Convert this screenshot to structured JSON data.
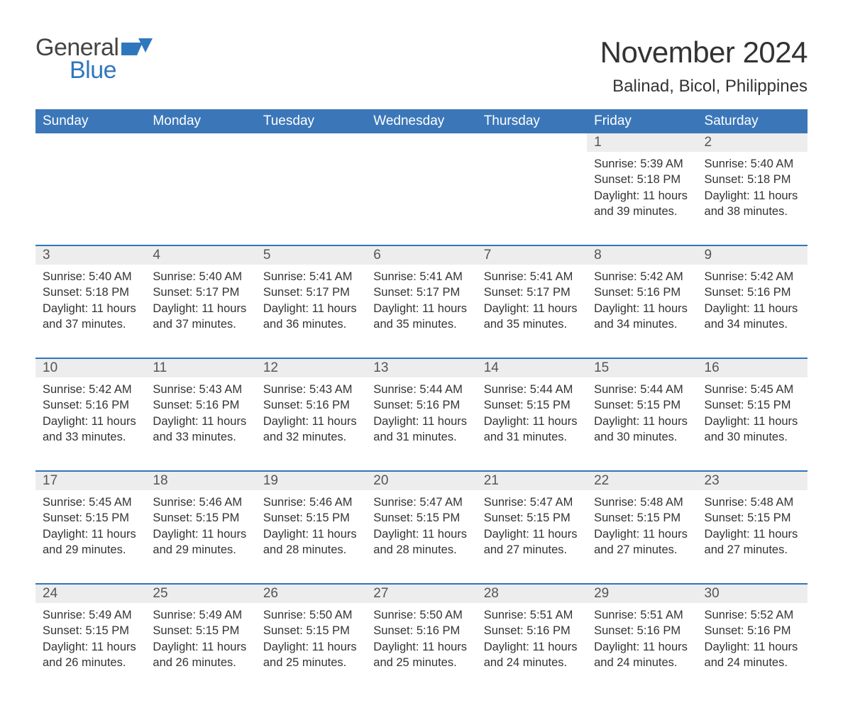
{
  "logo": {
    "word1": "General",
    "word2": "Blue",
    "flag_color": "#2f77bd"
  },
  "title": "November 2024",
  "location": "Balinad, Bicol, Philippines",
  "colors": {
    "header_bg": "#3b77b8",
    "header_text": "#ffffff",
    "row_divider": "#2f77bd",
    "daynum_bg": "#ededed",
    "text": "#333333",
    "logo_gray": "#444444",
    "logo_blue": "#2f77bd"
  },
  "columns": [
    "Sunday",
    "Monday",
    "Tuesday",
    "Wednesday",
    "Thursday",
    "Friday",
    "Saturday"
  ],
  "labels": {
    "sunrise": "Sunrise:",
    "sunset": "Sunset:",
    "daylight": "Daylight:"
  },
  "weeks": [
    [
      null,
      null,
      null,
      null,
      null,
      {
        "d": "1",
        "sunrise": "5:39 AM",
        "sunset": "5:18 PM",
        "daylight": "11 hours and 39 minutes."
      },
      {
        "d": "2",
        "sunrise": "5:40 AM",
        "sunset": "5:18 PM",
        "daylight": "11 hours and 38 minutes."
      }
    ],
    [
      {
        "d": "3",
        "sunrise": "5:40 AM",
        "sunset": "5:18 PM",
        "daylight": "11 hours and 37 minutes."
      },
      {
        "d": "4",
        "sunrise": "5:40 AM",
        "sunset": "5:17 PM",
        "daylight": "11 hours and 37 minutes."
      },
      {
        "d": "5",
        "sunrise": "5:41 AM",
        "sunset": "5:17 PM",
        "daylight": "11 hours and 36 minutes."
      },
      {
        "d": "6",
        "sunrise": "5:41 AM",
        "sunset": "5:17 PM",
        "daylight": "11 hours and 35 minutes."
      },
      {
        "d": "7",
        "sunrise": "5:41 AM",
        "sunset": "5:17 PM",
        "daylight": "11 hours and 35 minutes."
      },
      {
        "d": "8",
        "sunrise": "5:42 AM",
        "sunset": "5:16 PM",
        "daylight": "11 hours and 34 minutes."
      },
      {
        "d": "9",
        "sunrise": "5:42 AM",
        "sunset": "5:16 PM",
        "daylight": "11 hours and 34 minutes."
      }
    ],
    [
      {
        "d": "10",
        "sunrise": "5:42 AM",
        "sunset": "5:16 PM",
        "daylight": "11 hours and 33 minutes."
      },
      {
        "d": "11",
        "sunrise": "5:43 AM",
        "sunset": "5:16 PM",
        "daylight": "11 hours and 33 minutes."
      },
      {
        "d": "12",
        "sunrise": "5:43 AM",
        "sunset": "5:16 PM",
        "daylight": "11 hours and 32 minutes."
      },
      {
        "d": "13",
        "sunrise": "5:44 AM",
        "sunset": "5:16 PM",
        "daylight": "11 hours and 31 minutes."
      },
      {
        "d": "14",
        "sunrise": "5:44 AM",
        "sunset": "5:15 PM",
        "daylight": "11 hours and 31 minutes."
      },
      {
        "d": "15",
        "sunrise": "5:44 AM",
        "sunset": "5:15 PM",
        "daylight": "11 hours and 30 minutes."
      },
      {
        "d": "16",
        "sunrise": "5:45 AM",
        "sunset": "5:15 PM",
        "daylight": "11 hours and 30 minutes."
      }
    ],
    [
      {
        "d": "17",
        "sunrise": "5:45 AM",
        "sunset": "5:15 PM",
        "daylight": "11 hours and 29 minutes."
      },
      {
        "d": "18",
        "sunrise": "5:46 AM",
        "sunset": "5:15 PM",
        "daylight": "11 hours and 29 minutes."
      },
      {
        "d": "19",
        "sunrise": "5:46 AM",
        "sunset": "5:15 PM",
        "daylight": "11 hours and 28 minutes."
      },
      {
        "d": "20",
        "sunrise": "5:47 AM",
        "sunset": "5:15 PM",
        "daylight": "11 hours and 28 minutes."
      },
      {
        "d": "21",
        "sunrise": "5:47 AM",
        "sunset": "5:15 PM",
        "daylight": "11 hours and 27 minutes."
      },
      {
        "d": "22",
        "sunrise": "5:48 AM",
        "sunset": "5:15 PM",
        "daylight": "11 hours and 27 minutes."
      },
      {
        "d": "23",
        "sunrise": "5:48 AM",
        "sunset": "5:15 PM",
        "daylight": "11 hours and 27 minutes."
      }
    ],
    [
      {
        "d": "24",
        "sunrise": "5:49 AM",
        "sunset": "5:15 PM",
        "daylight": "11 hours and 26 minutes."
      },
      {
        "d": "25",
        "sunrise": "5:49 AM",
        "sunset": "5:15 PM",
        "daylight": "11 hours and 26 minutes."
      },
      {
        "d": "26",
        "sunrise": "5:50 AM",
        "sunset": "5:15 PM",
        "daylight": "11 hours and 25 minutes."
      },
      {
        "d": "27",
        "sunrise": "5:50 AM",
        "sunset": "5:16 PM",
        "daylight": "11 hours and 25 minutes."
      },
      {
        "d": "28",
        "sunrise": "5:51 AM",
        "sunset": "5:16 PM",
        "daylight": "11 hours and 24 minutes."
      },
      {
        "d": "29",
        "sunrise": "5:51 AM",
        "sunset": "5:16 PM",
        "daylight": "11 hours and 24 minutes."
      },
      {
        "d": "30",
        "sunrise": "5:52 AM",
        "sunset": "5:16 PM",
        "daylight": "11 hours and 24 minutes."
      }
    ]
  ]
}
